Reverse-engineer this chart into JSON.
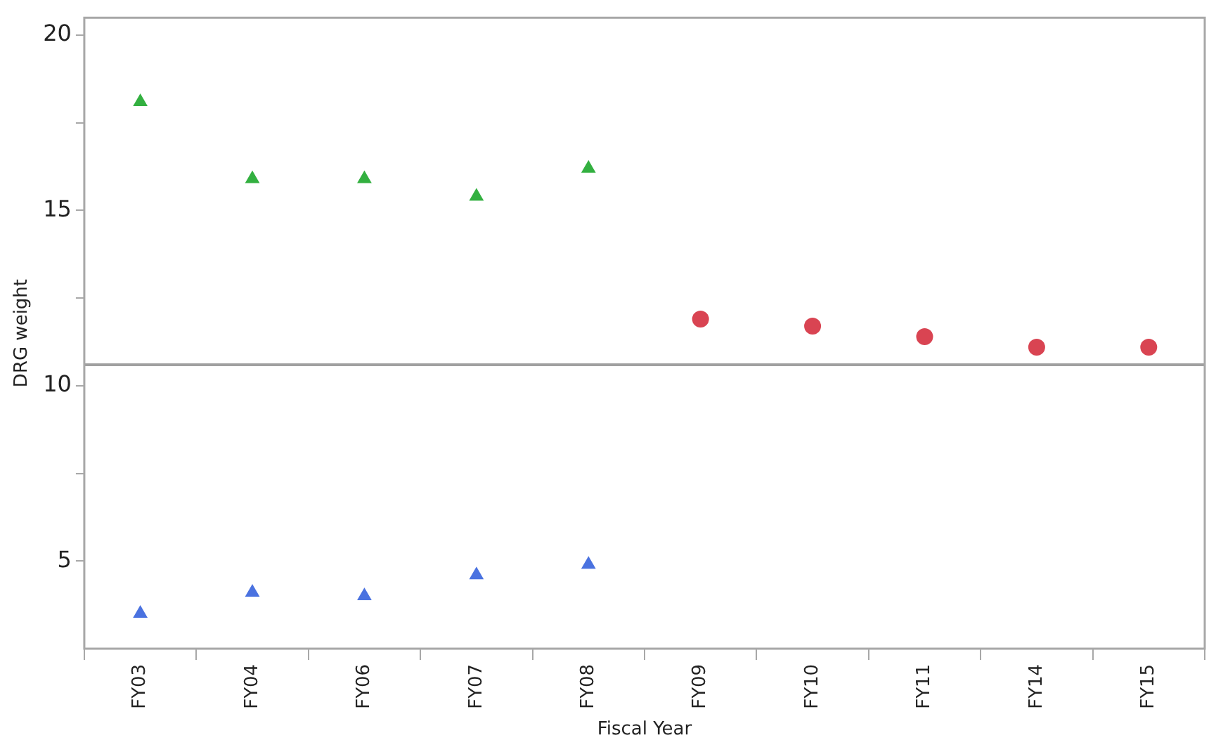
{
  "chart_data": {
    "type": "scatter",
    "xlabel": "Fiscal Year",
    "ylabel": "DRG weight",
    "categories": [
      "FY03",
      "FY04",
      "FY06",
      "FY07",
      "FY08",
      "FY09",
      "FY10",
      "FY11",
      "FY14",
      "FY15"
    ],
    "series": [
      {
        "color": "#33b040",
        "marker": "triangle",
        "values": [
          18.1,
          15.9,
          15.9,
          15.4,
          16.2,
          null,
          null,
          null,
          null,
          null
        ]
      },
      {
        "color": "#4a72e0",
        "marker": "triangle",
        "values": [
          3.5,
          4.1,
          4.0,
          4.6,
          4.9,
          null,
          null,
          null,
          null,
          null
        ]
      },
      {
        "color": "#d94452",
        "marker": "circle",
        "values": [
          null,
          null,
          null,
          null,
          null,
          11.9,
          11.7,
          11.4,
          11.1,
          11.1
        ]
      }
    ],
    "ylim": [
      2.5,
      20.5
    ],
    "yticks": [
      5,
      {
        "value": 7.5,
        "label": null
      },
      10,
      {
        "value": 12.5,
        "label": null
      },
      15,
      {
        "value": 17.5,
        "label": null
      },
      20
    ],
    "ref_lines": [
      {
        "axis": "y",
        "value": 10.6,
        "color": "#a0a0a0"
      }
    ],
    "grid": false,
    "legend": false
  }
}
